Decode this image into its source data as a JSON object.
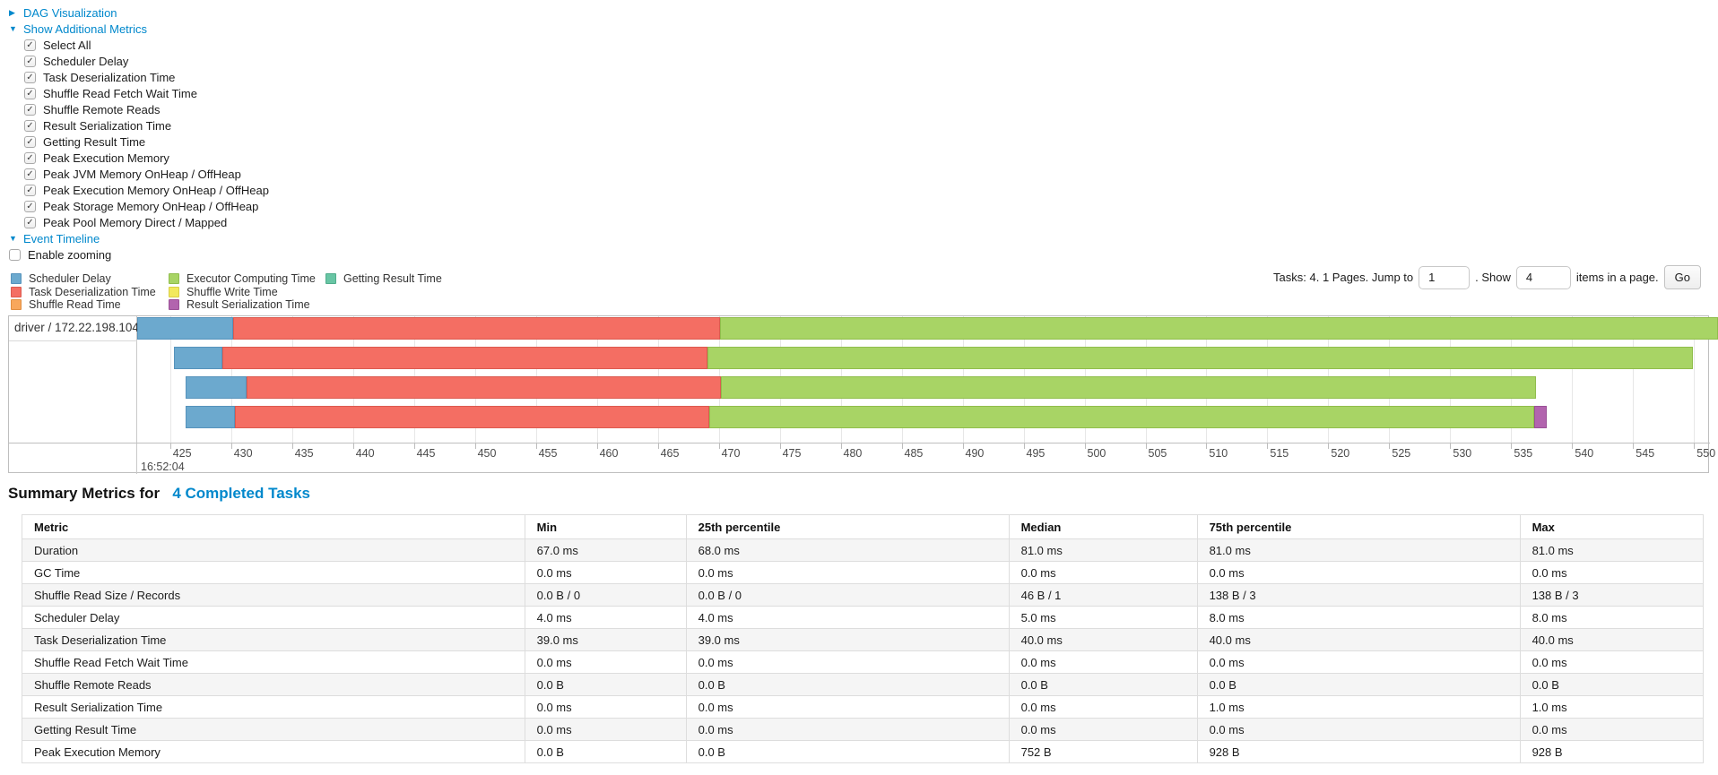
{
  "icons": {
    "collapsed_arrow": "▶",
    "expanded_arrow": "▼",
    "check": "✓"
  },
  "accent": {
    "link_blue": "#0088cc"
  },
  "dag_section": {
    "label": "DAG Visualization"
  },
  "metrics_section": {
    "label": "Show Additional Metrics",
    "checkboxes": [
      "Select All",
      "Scheduler Delay",
      "Task Deserialization Time",
      "Shuffle Read Fetch Wait Time",
      "Shuffle Remote Reads",
      "Result Serialization Time",
      "Getting Result Time",
      "Peak Execution Memory",
      "Peak JVM Memory OnHeap / OffHeap",
      "Peak Execution Memory OnHeap / OffHeap",
      "Peak Storage Memory OnHeap / OffHeap",
      "Peak Pool Memory Direct / Mapped"
    ]
  },
  "timeline_section": {
    "label": "Event Timeline",
    "enable_zooming_label": "Enable zooming"
  },
  "legend_order": [
    "scheduler-delay",
    "task-deserialization-time",
    "shuffle-read-time",
    "executor-computing-time",
    "shuffle-write-time",
    "result-serialization-time",
    "getting-result-time"
  ],
  "pagination": {
    "tasks_text": "Tasks: 4. 1 Pages. Jump to",
    "jump_value": "1",
    "show_text": ". Show",
    "show_value": "4",
    "items_text": "items in a page.",
    "go_label": "Go"
  },
  "chart_data": {
    "type": "timeline",
    "group_label": "driver / 172.22.198.104",
    "axis": {
      "min": 422.3,
      "max": 551.3,
      "tick_start": 425,
      "tick_end": 550,
      "tick_step": 5,
      "major_label": "16:52:04"
    },
    "colors": {
      "scheduler-delay": {
        "label": "Scheduler Delay",
        "fill": "#6CA9CE",
        "border": "#5693BC"
      },
      "task-deserialization-time": {
        "label": "Task Deserialization Time",
        "fill": "#F46E63",
        "border": "#DC5A4F"
      },
      "shuffle-read-time": {
        "label": "Shuffle Read Time",
        "fill": "#F8A75C",
        "border": "#E08E41"
      },
      "executor-computing-time": {
        "label": "Executor Computing Time",
        "fill": "#A8D465",
        "border": "#90BD4C"
      },
      "shuffle-write-time": {
        "label": "Shuffle Write Time",
        "fill": "#F2E95E",
        "border": "#D9CE45"
      },
      "result-serialization-time": {
        "label": "Result Serialization Time",
        "fill": "#B264AE",
        "border": "#9A5096"
      },
      "getting-result-time": {
        "label": "Getting Result Time",
        "fill": "#68C5A4",
        "border": "#50AD8C"
      }
    },
    "tasks": [
      {
        "segments": [
          {
            "name": "scheduler-delay",
            "start": 422.3,
            "end": 430.2
          },
          {
            "name": "task-deserialization-time",
            "start": 430.2,
            "end": 470.1
          },
          {
            "name": "executor-computing-time",
            "start": 470.1,
            "end": 552.0
          }
        ]
      },
      {
        "segments": [
          {
            "name": "scheduler-delay",
            "start": 425.3,
            "end": 429.3
          },
          {
            "name": "task-deserialization-time",
            "start": 429.3,
            "end": 469.1
          },
          {
            "name": "executor-computing-time",
            "start": 469.1,
            "end": 549.9
          }
        ]
      },
      {
        "segments": [
          {
            "name": "scheduler-delay",
            "start": 426.3,
            "end": 431.3
          },
          {
            "name": "task-deserialization-time",
            "start": 431.3,
            "end": 470.2
          },
          {
            "name": "executor-computing-time",
            "start": 470.2,
            "end": 537.0
          }
        ]
      },
      {
        "segments": [
          {
            "name": "scheduler-delay",
            "start": 426.3,
            "end": 430.3
          },
          {
            "name": "task-deserialization-time",
            "start": 430.3,
            "end": 469.2
          },
          {
            "name": "executor-computing-time",
            "start": 469.2,
            "end": 536.9
          },
          {
            "name": "result-serialization-time",
            "start": 536.9,
            "end": 537.9
          }
        ]
      }
    ]
  },
  "summary": {
    "title_prefix": "Summary Metrics for",
    "title_link": "4 Completed Tasks",
    "columns": [
      "Metric",
      "Min",
      "25th percentile",
      "Median",
      "75th percentile",
      "Max"
    ],
    "col_widths_pct": [
      29.9,
      9.6,
      19.2,
      11.2,
      19.2,
      10.9
    ],
    "rows": [
      [
        "Duration",
        "67.0 ms",
        "68.0 ms",
        "81.0 ms",
        "81.0 ms",
        "81.0 ms"
      ],
      [
        "GC Time",
        "0.0 ms",
        "0.0 ms",
        "0.0 ms",
        "0.0 ms",
        "0.0 ms"
      ],
      [
        "Shuffle Read Size / Records",
        "0.0 B / 0",
        "0.0 B / 0",
        "46 B / 1",
        "138 B / 3",
        "138 B / 3"
      ],
      [
        "Scheduler Delay",
        "4.0 ms",
        "4.0 ms",
        "5.0 ms",
        "8.0 ms",
        "8.0 ms"
      ],
      [
        "Task Deserialization Time",
        "39.0 ms",
        "39.0 ms",
        "40.0 ms",
        "40.0 ms",
        "40.0 ms"
      ],
      [
        "Shuffle Read Fetch Wait Time",
        "0.0 ms",
        "0.0 ms",
        "0.0 ms",
        "0.0 ms",
        "0.0 ms"
      ],
      [
        "Shuffle Remote Reads",
        "0.0 B",
        "0.0 B",
        "0.0 B",
        "0.0 B",
        "0.0 B"
      ],
      [
        "Result Serialization Time",
        "0.0 ms",
        "0.0 ms",
        "0.0 ms",
        "1.0 ms",
        "1.0 ms"
      ],
      [
        "Getting Result Time",
        "0.0 ms",
        "0.0 ms",
        "0.0 ms",
        "0.0 ms",
        "0.0 ms"
      ],
      [
        "Peak Execution Memory",
        "0.0 B",
        "0.0 B",
        "752 B",
        "928 B",
        "928 B"
      ]
    ]
  }
}
